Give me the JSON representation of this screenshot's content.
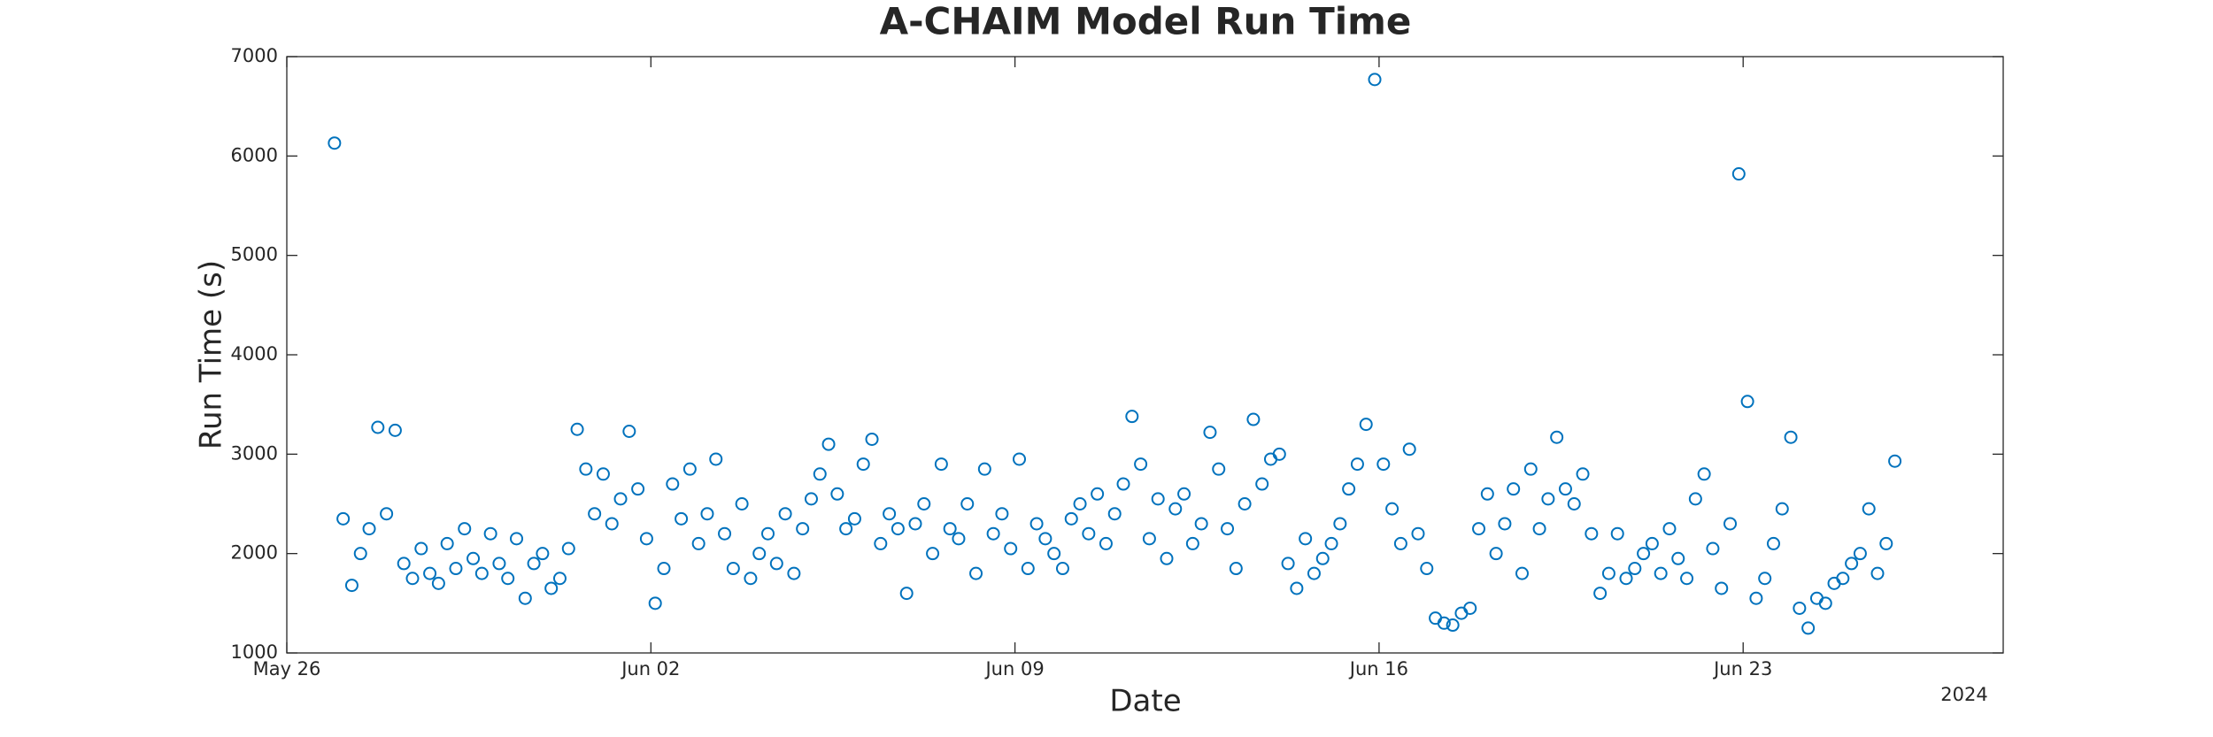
{
  "chart_data": {
    "type": "scatter",
    "title": "A-CHAIM Model Run Time",
    "xlabel": "Date",
    "ylabel": "Run Time (s)",
    "x_year_label": "2024",
    "color": "#0072bd",
    "xlim": [
      "2024-05-26T00:00",
      "2024-06-28T00:00"
    ],
    "xticks": [
      {
        "value": "2024-05-26T00:00",
        "label": "May 26"
      },
      {
        "value": "2024-06-02T00:00",
        "label": "Jun 02"
      },
      {
        "value": "2024-06-09T00:00",
        "label": "Jun 09"
      },
      {
        "value": "2024-06-16T00:00",
        "label": "Jun 16"
      },
      {
        "value": "2024-06-23T00:00",
        "label": "Jun 23"
      }
    ],
    "ylim": [
      1000,
      7000
    ],
    "yticks": [
      1000,
      2000,
      3000,
      4000,
      5000,
      6000,
      7000
    ],
    "x": [
      "2024-05-26T22:00",
      "2024-05-27T02:00",
      "2024-05-27T06:00",
      "2024-05-27T10:00",
      "2024-05-27T14:00",
      "2024-05-27T18:00",
      "2024-05-27T22:00",
      "2024-05-28T02:00",
      "2024-05-28T06:00",
      "2024-05-28T10:00",
      "2024-05-28T14:00",
      "2024-05-28T18:00",
      "2024-05-28T22:00",
      "2024-05-29T02:00",
      "2024-05-29T06:00",
      "2024-05-29T10:00",
      "2024-05-29T14:00",
      "2024-05-29T18:00",
      "2024-05-29T22:00",
      "2024-05-30T02:00",
      "2024-05-30T06:00",
      "2024-05-30T10:00",
      "2024-05-30T14:00",
      "2024-05-30T18:00",
      "2024-05-30T22:00",
      "2024-05-31T02:00",
      "2024-05-31T06:00",
      "2024-05-31T10:00",
      "2024-05-31T14:00",
      "2024-05-31T18:00",
      "2024-05-31T22:00",
      "2024-06-01T02:00",
      "2024-06-01T06:00",
      "2024-06-01T10:00",
      "2024-06-01T14:00",
      "2024-06-01T18:00",
      "2024-06-01T22:00",
      "2024-06-02T02:00",
      "2024-06-02T06:00",
      "2024-06-02T10:00",
      "2024-06-02T14:00",
      "2024-06-02T18:00",
      "2024-06-02T22:00",
      "2024-06-03T02:00",
      "2024-06-03T06:00",
      "2024-06-03T10:00",
      "2024-06-03T14:00",
      "2024-06-03T18:00",
      "2024-06-03T22:00",
      "2024-06-04T02:00",
      "2024-06-04T06:00",
      "2024-06-04T10:00",
      "2024-06-04T14:00",
      "2024-06-04T18:00",
      "2024-06-04T22:00",
      "2024-06-05T02:00",
      "2024-06-05T06:00",
      "2024-06-05T10:00",
      "2024-06-05T14:00",
      "2024-06-05T18:00",
      "2024-06-05T22:00",
      "2024-06-06T02:00",
      "2024-06-06T06:00",
      "2024-06-06T10:00",
      "2024-06-06T14:00",
      "2024-06-06T18:00",
      "2024-06-06T22:00",
      "2024-06-07T02:00",
      "2024-06-07T06:00",
      "2024-06-07T10:00",
      "2024-06-07T14:00",
      "2024-06-07T18:00",
      "2024-06-07T22:00",
      "2024-06-08T02:00",
      "2024-06-08T06:00",
      "2024-06-08T10:00",
      "2024-06-08T14:00",
      "2024-06-08T18:00",
      "2024-06-08T22:00",
      "2024-06-09T02:00",
      "2024-06-09T06:00",
      "2024-06-09T10:00",
      "2024-06-09T14:00",
      "2024-06-09T18:00",
      "2024-06-09T22:00",
      "2024-06-10T02:00",
      "2024-06-10T06:00",
      "2024-06-10T10:00",
      "2024-06-10T14:00",
      "2024-06-10T18:00",
      "2024-06-10T22:00",
      "2024-06-11T02:00",
      "2024-06-11T06:00",
      "2024-06-11T10:00",
      "2024-06-11T14:00",
      "2024-06-11T18:00",
      "2024-06-11T22:00",
      "2024-06-12T02:00",
      "2024-06-12T06:00",
      "2024-06-12T10:00",
      "2024-06-12T14:00",
      "2024-06-12T18:00",
      "2024-06-12T22:00",
      "2024-06-13T02:00",
      "2024-06-13T06:00",
      "2024-06-13T10:00",
      "2024-06-13T14:00",
      "2024-06-13T18:00",
      "2024-06-13T22:00",
      "2024-06-14T02:00",
      "2024-06-14T06:00",
      "2024-06-14T10:00",
      "2024-06-14T14:00",
      "2024-06-14T18:00",
      "2024-06-14T22:00",
      "2024-06-15T02:00",
      "2024-06-15T06:00",
      "2024-06-15T10:00",
      "2024-06-15T14:00",
      "2024-06-15T18:00",
      "2024-06-15T22:00",
      "2024-06-16T02:00",
      "2024-06-16T06:00",
      "2024-06-16T10:00",
      "2024-06-16T14:00",
      "2024-06-16T18:00",
      "2024-06-16T22:00",
      "2024-06-17T02:00",
      "2024-06-17T06:00",
      "2024-06-17T10:00",
      "2024-06-17T14:00",
      "2024-06-17T18:00",
      "2024-06-17T22:00",
      "2024-06-18T02:00",
      "2024-06-18T06:00",
      "2024-06-18T10:00",
      "2024-06-18T14:00",
      "2024-06-18T18:00",
      "2024-06-18T22:00",
      "2024-06-19T02:00",
      "2024-06-19T06:00",
      "2024-06-19T10:00",
      "2024-06-19T14:00",
      "2024-06-19T18:00",
      "2024-06-19T22:00",
      "2024-06-20T02:00",
      "2024-06-20T06:00",
      "2024-06-20T10:00",
      "2024-06-20T14:00",
      "2024-06-20T18:00",
      "2024-06-20T22:00",
      "2024-06-21T02:00",
      "2024-06-21T06:00",
      "2024-06-21T10:00",
      "2024-06-21T14:00",
      "2024-06-21T18:00",
      "2024-06-21T22:00",
      "2024-06-22T02:00",
      "2024-06-22T06:00",
      "2024-06-22T10:00",
      "2024-06-22T14:00",
      "2024-06-22T18:00",
      "2024-06-22T22:00",
      "2024-06-23T02:00",
      "2024-06-23T06:00",
      "2024-06-23T10:00",
      "2024-06-23T14:00",
      "2024-06-23T18:00",
      "2024-06-23T22:00",
      "2024-06-24T02:00",
      "2024-06-24T06:00",
      "2024-06-24T10:00",
      "2024-06-24T14:00",
      "2024-06-24T18:00",
      "2024-06-24T22:00",
      "2024-06-25T02:00",
      "2024-06-25T06:00",
      "2024-06-25T10:00",
      "2024-06-25T14:00",
      "2024-06-25T18:00",
      "2024-06-25T22:00"
    ],
    "values": [
      6130,
      2350,
      1680,
      2000,
      2250,
      3270,
      2400,
      3240,
      1900,
      1750,
      2050,
      1800,
      1700,
      2100,
      1850,
      2250,
      1950,
      1800,
      2200,
      1900,
      1750,
      2150,
      1550,
      1900,
      2000,
      1650,
      1750,
      2050,
      3250,
      2850,
      2400,
      2800,
      2300,
      2550,
      3230,
      2650,
      2150,
      1500,
      1850,
      2700,
      2350,
      2850,
      2100,
      2400,
      2950,
      2200,
      1850,
      2500,
      1750,
      2000,
      2200,
      1900,
      2400,
      1800,
      2250,
      2550,
      2800,
      3100,
      2600,
      2250,
      2350,
      2900,
      3150,
      2100,
      2400,
      2250,
      1600,
      2300,
      2500,
      2000,
      2900,
      2250,
      2150,
      2500,
      1800,
      2850,
      2200,
      2400,
      2050,
      2950,
      1850,
      2300,
      2150,
      2000,
      1850,
      2350,
      2500,
      2200,
      2600,
      2100,
      2400,
      2700,
      3380,
      2900,
      2150,
      2550,
      1950,
      2450,
      2600,
      2100,
      2300,
      3220,
      2850,
      2250,
      1850,
      2500,
      3350,
      2700,
      2950,
      3000,
      1900,
      1650,
      2150,
      1800,
      1950,
      2100,
      2300,
      2650,
      2900,
      3300,
      6770,
      2900,
      2450,
      2100,
      3050,
      2200,
      1850,
      1350,
      1300,
      1280,
      1400,
      1450,
      2250,
      2600,
      2000,
      2300,
      2650,
      1800,
      2850,
      2250,
      2550,
      3170,
      2650,
      2500,
      2800,
      2200,
      1600,
      1800,
      2200,
      1750,
      1850,
      2000,
      2100,
      1800,
      2250,
      1950,
      1750,
      2550,
      2800,
      2050,
      1650,
      2300,
      5820,
      3530,
      1550,
      1750,
      2100,
      2450,
      3170,
      1450,
      1250,
      1550,
      1500,
      1700,
      1750,
      1900,
      2000,
      2450,
      1800,
      2100,
      2930
    ]
  }
}
